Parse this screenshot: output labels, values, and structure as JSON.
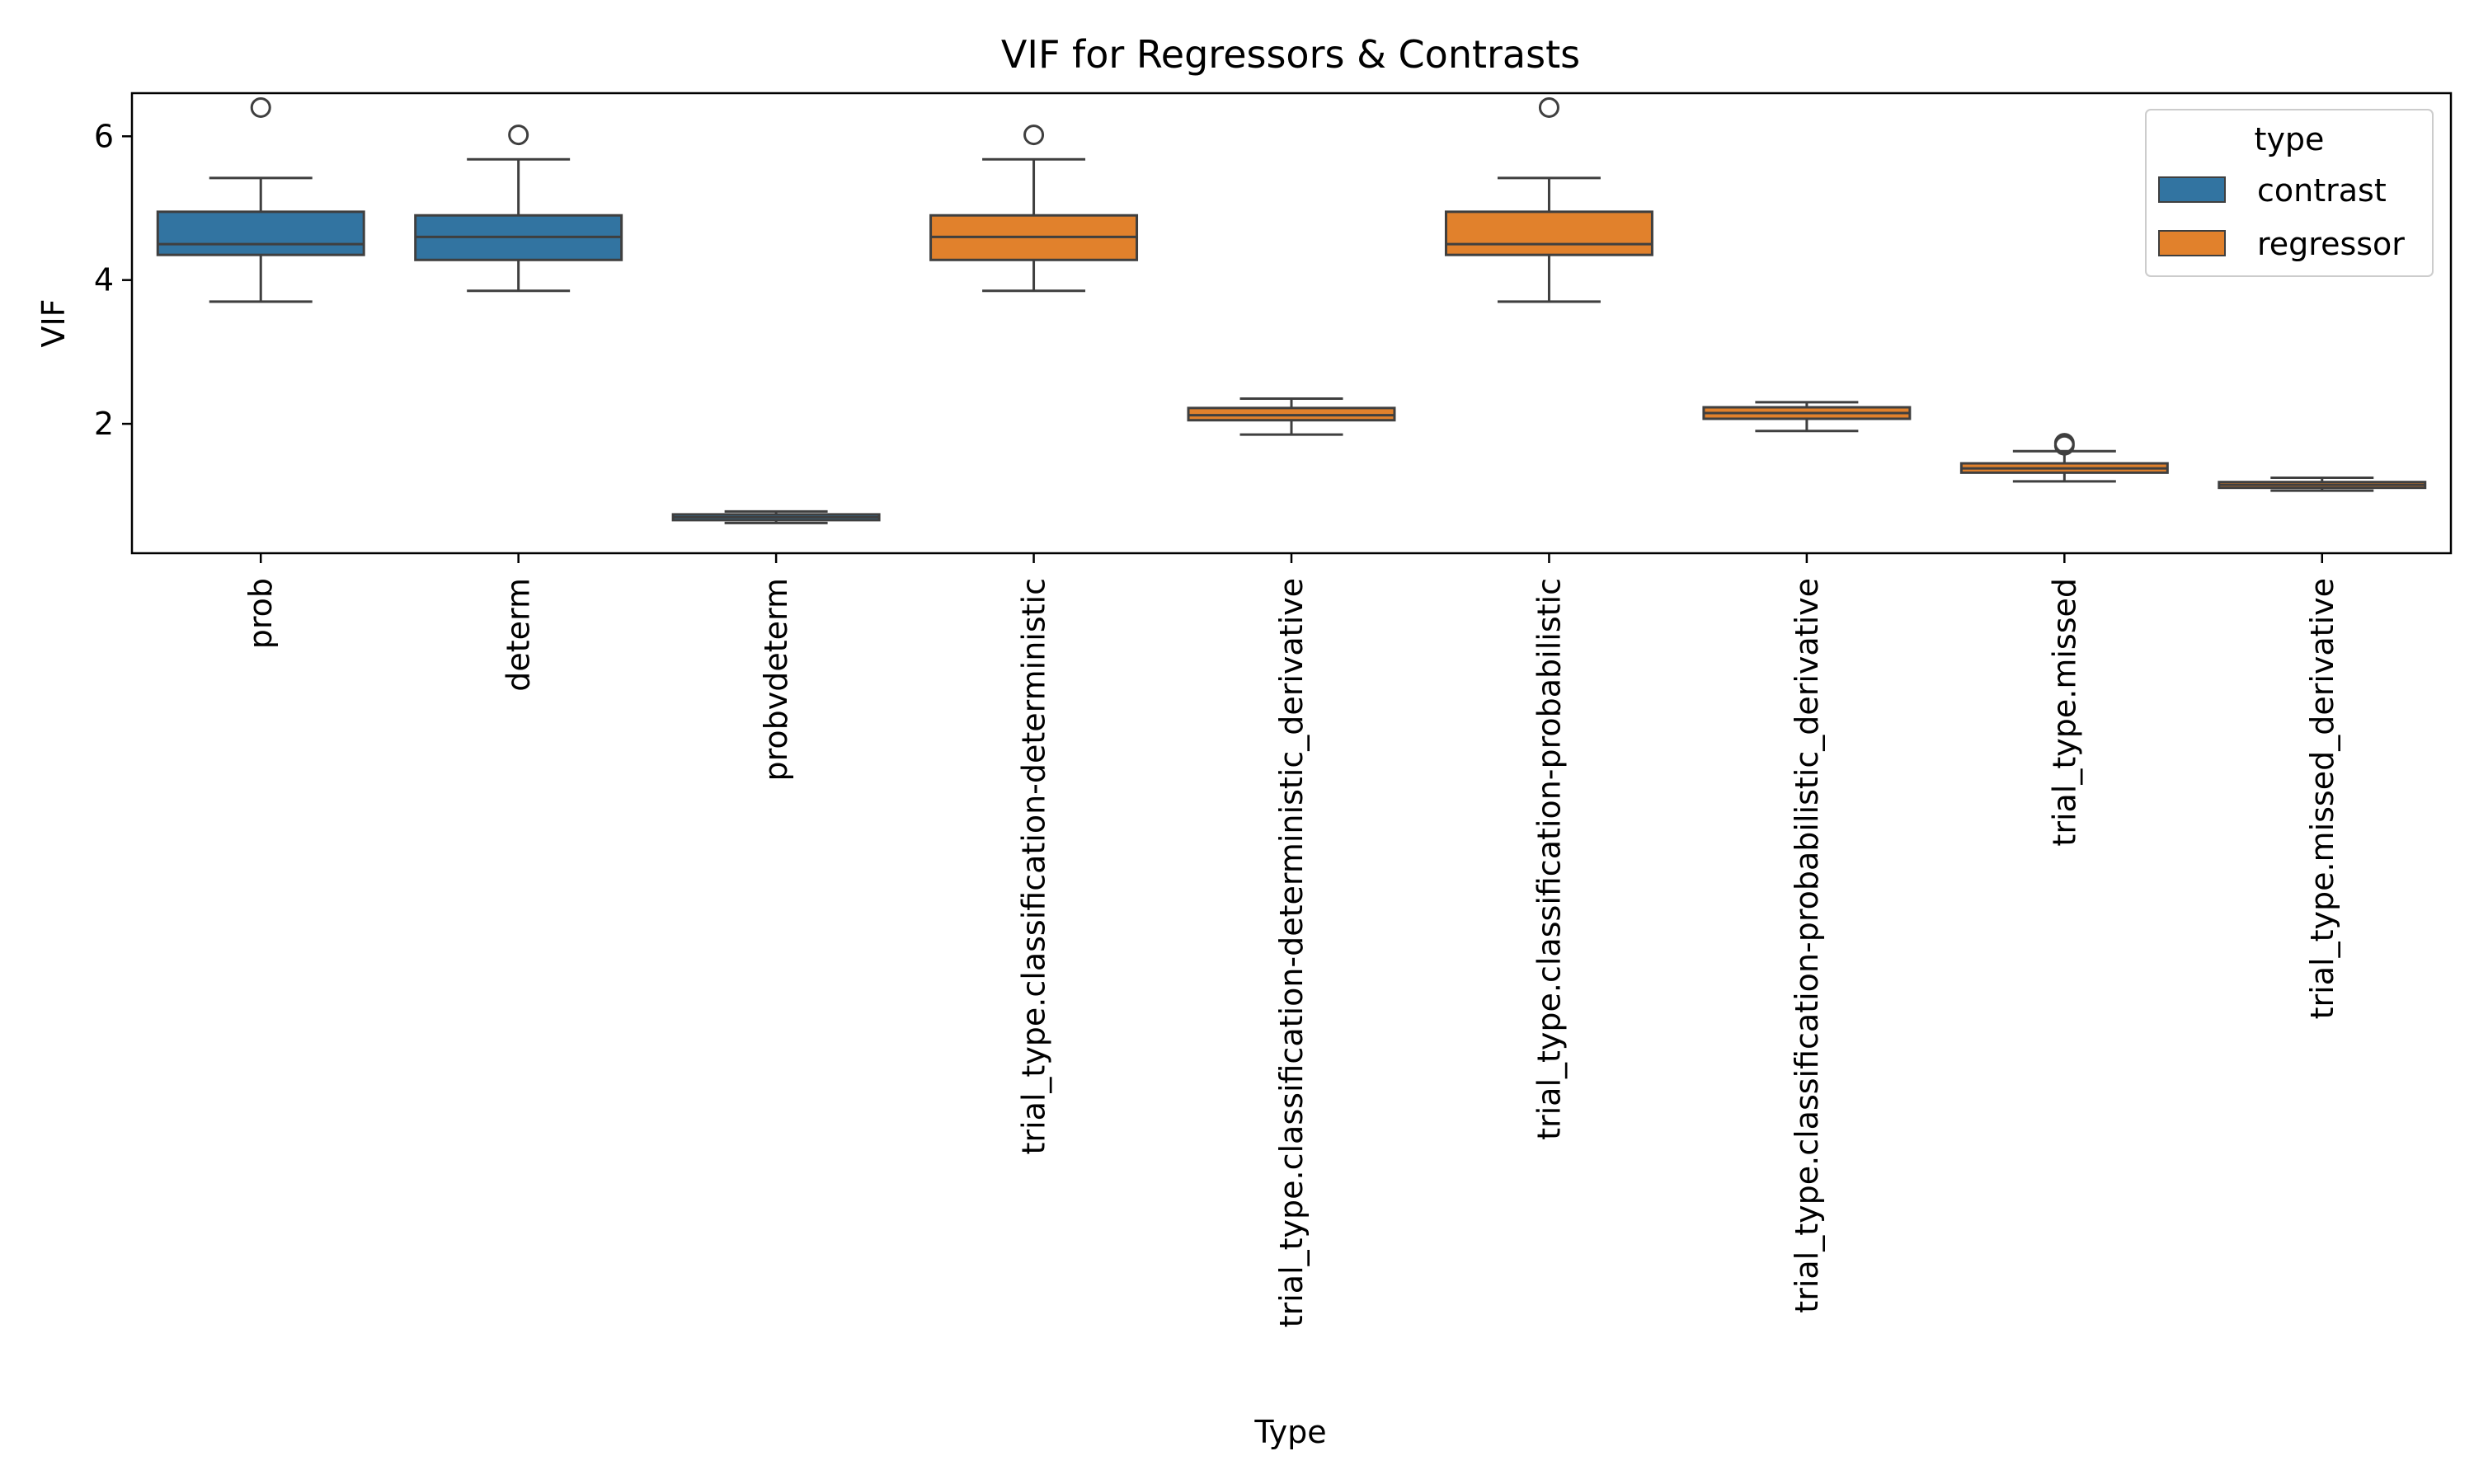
{
  "chart_data": {
    "type": "box",
    "title": "VIF for Regressors & Contrasts",
    "xlabel": "Type",
    "ylabel": "VIF",
    "ylim": [
      0.2,
      6.6
    ],
    "yticks": [
      2,
      4,
      6
    ],
    "ytick_labels": [
      "2",
      "4",
      "6"
    ],
    "grid": false,
    "legend": {
      "title": "type",
      "placement": "top-right",
      "entries": [
        {
          "label": "contrast",
          "color": "#3274a1"
        },
        {
          "label": "regressor",
          "color": "#e1812c"
        }
      ]
    },
    "categories": [
      "prob",
      "determ",
      "probvdeterm",
      "trial_type.classification-deterministic",
      "trial_type.classification-deterministic_derivative",
      "trial_type.classification-probabilistic",
      "trial_type.classification-probabilistic_derivative",
      "trial_type.missed",
      "trial_type.missed_derivative"
    ],
    "boxes": [
      {
        "category": "prob",
        "type": "contrast",
        "whisker_low": 3.7,
        "q1": 4.35,
        "median": 4.5,
        "q3": 4.95,
        "whisker_high": 5.42,
        "outliers": [
          6.4
        ]
      },
      {
        "category": "determ",
        "type": "contrast",
        "whisker_low": 3.85,
        "q1": 4.28,
        "median": 4.6,
        "q3": 4.9,
        "whisker_high": 5.68,
        "outliers": [
          6.02
        ]
      },
      {
        "category": "probvdeterm",
        "type": "contrast",
        "whisker_low": 0.62,
        "q1": 0.66,
        "median": 0.7,
        "q3": 0.74,
        "whisker_high": 0.78,
        "outliers": []
      },
      {
        "category": "trial_type.classification-deterministic",
        "type": "regressor",
        "whisker_low": 3.85,
        "q1": 4.28,
        "median": 4.6,
        "q3": 4.9,
        "whisker_high": 5.68,
        "outliers": [
          6.02
        ]
      },
      {
        "category": "trial_type.classification-deterministic_derivative",
        "type": "regressor",
        "whisker_low": 1.85,
        "q1": 2.05,
        "median": 2.12,
        "q3": 2.22,
        "whisker_high": 2.35,
        "outliers": []
      },
      {
        "category": "trial_type.classification-probabilistic",
        "type": "regressor",
        "whisker_low": 3.7,
        "q1": 4.35,
        "median": 4.5,
        "q3": 4.95,
        "whisker_high": 5.42,
        "outliers": [
          6.4
        ]
      },
      {
        "category": "trial_type.classification-probabilistic_derivative",
        "type": "regressor",
        "whisker_low": 1.9,
        "q1": 2.07,
        "median": 2.15,
        "q3": 2.23,
        "whisker_high": 2.3,
        "outliers": []
      },
      {
        "category": "trial_type.missed",
        "type": "regressor",
        "whisker_low": 1.2,
        "q1": 1.32,
        "median": 1.38,
        "q3": 1.45,
        "whisker_high": 1.62,
        "outliers": [
          1.73,
          1.7
        ]
      },
      {
        "category": "trial_type.missed_derivative",
        "type": "regressor",
        "whisker_low": 1.07,
        "q1": 1.11,
        "median": 1.15,
        "q3": 1.19,
        "whisker_high": 1.25,
        "outliers": []
      }
    ]
  }
}
